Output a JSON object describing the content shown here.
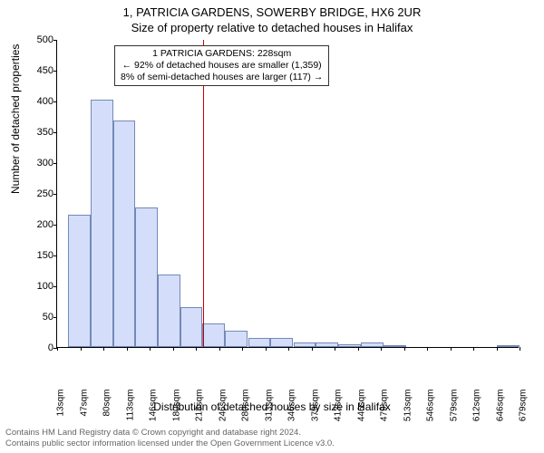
{
  "title_line1": "1, PATRICIA GARDENS, SOWERBY BRIDGE, HX6 2UR",
  "title_line2": "Size of property relative to detached houses in Halifax",
  "ylabel": "Number of detached properties",
  "xlabel": "Distribution of detached houses by size in Halifax",
  "footer_line1": "Contains HM Land Registry data © Crown copyright and database right 2024.",
  "footer_line2": "Contains public sector information licensed under the Open Government Licence v3.0.",
  "annotation": {
    "line1": "1 PATRICIA GARDENS: 228sqm",
    "line2": "← 92% of detached houses are smaller (1,359)",
    "line3": "8% of semi-detached houses are larger (117) →"
  },
  "chart": {
    "type": "histogram",
    "background_color": "#ffffff",
    "axis_color": "#000000",
    "bar_fill": "#d4defa",
    "bar_stroke": "#7489b8",
    "marker_color": "#cc0000",
    "marker_value_sqm": 228,
    "ylim": [
      0,
      500
    ],
    "ytick_step": 50,
    "x_range_sqm": [
      13,
      695
    ],
    "x_tick_labels": [
      "13sqm",
      "47sqm",
      "80sqm",
      "113sqm",
      "146sqm",
      "180sqm",
      "213sqm",
      "246sqm",
      "280sqm",
      "313sqm",
      "346sqm",
      "379sqm",
      "413sqm",
      "446sqm",
      "479sqm",
      "513sqm",
      "546sqm",
      "579sqm",
      "612sqm",
      "646sqm",
      "679sqm"
    ],
    "bars": [
      {
        "x_sqm": 46,
        "value": 215
      },
      {
        "x_sqm": 79,
        "value": 402
      },
      {
        "x_sqm": 112,
        "value": 368
      },
      {
        "x_sqm": 145,
        "value": 227
      },
      {
        "x_sqm": 178,
        "value": 117
      },
      {
        "x_sqm": 211,
        "value": 64
      },
      {
        "x_sqm": 244,
        "value": 38
      },
      {
        "x_sqm": 277,
        "value": 27
      },
      {
        "x_sqm": 311,
        "value": 14
      },
      {
        "x_sqm": 344,
        "value": 14
      },
      {
        "x_sqm": 378,
        "value": 7
      },
      {
        "x_sqm": 411,
        "value": 7
      },
      {
        "x_sqm": 444,
        "value": 5
      },
      {
        "x_sqm": 478,
        "value": 8
      },
      {
        "x_sqm": 511,
        "value": 2
      },
      {
        "x_sqm": 544,
        "value": 0
      },
      {
        "x_sqm": 578,
        "value": 0
      },
      {
        "x_sqm": 611,
        "value": 0
      },
      {
        "x_sqm": 644,
        "value": 0
      },
      {
        "x_sqm": 678,
        "value": 2
      }
    ],
    "bar_span_sqm": 33,
    "label_fontsize": 12,
    "tick_fontsize": 11
  }
}
